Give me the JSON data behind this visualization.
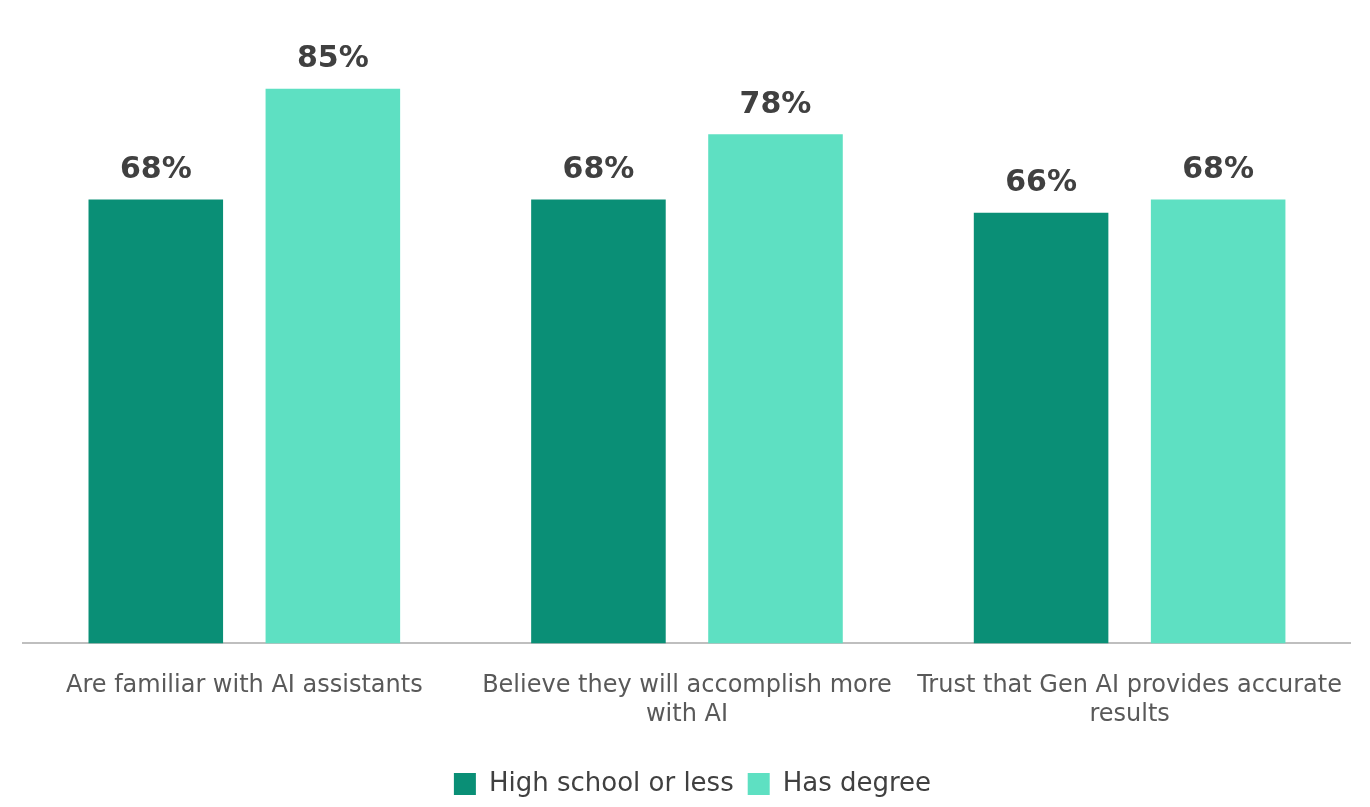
{
  "chart_data": {
    "type": "bar",
    "categories": [
      "Are familiar with AI assistants",
      "Believe they will accomplish more with AI",
      "Trust that Gen AI provides accurate results"
    ],
    "series": [
      {
        "name": "High school or less",
        "color": "#0a8f76",
        "values": [
          68,
          68,
          66
        ],
        "value_labels": [
          "68%",
          "68%",
          "66%"
        ]
      },
      {
        "name": "Has degree",
        "color": "#5ee0c2",
        "values": [
          85,
          78,
          68
        ],
        "value_labels": [
          "85%",
          "78%",
          "68%"
        ]
      }
    ],
    "tick_labels": "x",
    "legend": "bottom",
    "grid": false
  }
}
